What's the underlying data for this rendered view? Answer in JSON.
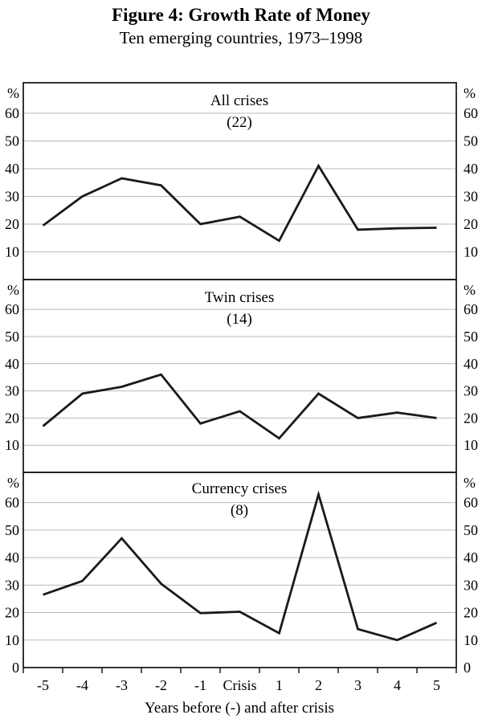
{
  "header": {
    "title": "Figure 4: Growth Rate of Money",
    "subtitle": "Ten emerging countries, 1973–1998"
  },
  "chart_data": {
    "type": "line",
    "title": "Figure 4: Growth Rate of Money",
    "subtitle": "Ten emerging countries, 1973–1998",
    "x_categories": [
      "-5",
      "-4",
      "-3",
      "-2",
      "-1",
      "Crisis",
      "1",
      "2",
      "3",
      "4",
      "5"
    ],
    "xlabel": "Years before (-) and after crisis",
    "y_unit": "%",
    "y_ticks": [
      0,
      10,
      20,
      30,
      40,
      50,
      60
    ],
    "ylim": [
      0,
      71
    ],
    "grid": true,
    "legend": "none",
    "line_color": "#1a1a1a",
    "grid_color": "#b9b9b9",
    "panels": [
      {
        "title": "All crises",
        "count": "(22)",
        "values": [
          19.5,
          30,
          36.5,
          34,
          20,
          22.7,
          14,
          41,
          18,
          18.5,
          18.7
        ]
      },
      {
        "title": "Twin crises",
        "count": "(14)",
        "values": [
          17,
          29,
          31.5,
          36,
          18,
          22.5,
          12.5,
          29,
          20,
          22,
          20
        ]
      },
      {
        "title": "Currency crises",
        "count": "(8)",
        "values": [
          26.5,
          31.5,
          47,
          30.5,
          19.8,
          20.3,
          12.5,
          63,
          14,
          10,
          16.3
        ]
      }
    ]
  }
}
